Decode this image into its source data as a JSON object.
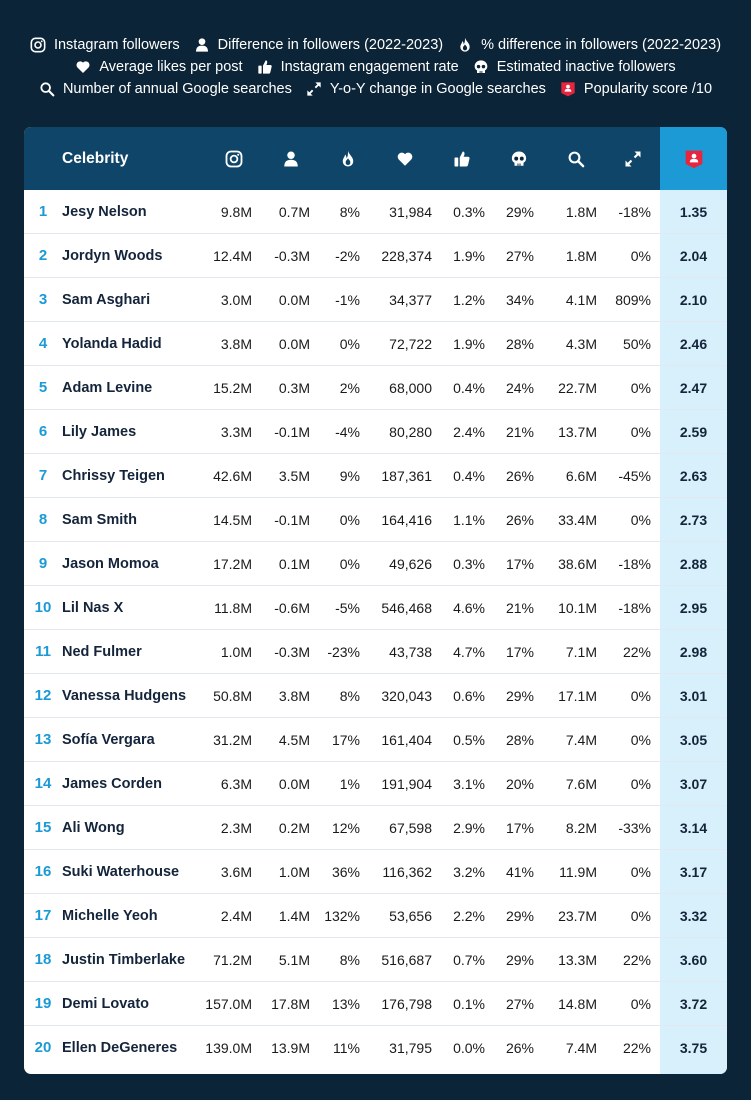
{
  "legend": [
    [
      {
        "icon": "instagram-icon",
        "label": "Instagram followers"
      },
      {
        "icon": "person-icon",
        "label": "Difference in followers (2022-2023)"
      },
      {
        "icon": "flame-icon",
        "label": "% difference in followers (2022-2023)"
      }
    ],
    [
      {
        "icon": "heart-icon",
        "label": "Average likes per post"
      },
      {
        "icon": "thumbs-up-icon",
        "label": "Instagram engagement rate"
      },
      {
        "icon": "skull-icon",
        "label": "Estimated inactive followers"
      }
    ],
    [
      {
        "icon": "search-icon",
        "label": "Number of annual Google searches"
      },
      {
        "icon": "expand-arrows-icon",
        "label": "Y-o-Y change in Google searches"
      },
      {
        "icon": "popularity-badge-icon",
        "label": "Popularity score /10"
      }
    ]
  ],
  "colors": {
    "background": "#0c2437",
    "header": "#0e4568",
    "accent": "#1b9ad5",
    "score_column": "#d7f0fb",
    "badge": "#e8253f"
  },
  "chart_data": {
    "type": "table",
    "header_title": "Celebrity",
    "column_icons": [
      "instagram-icon",
      "person-icon",
      "flame-icon",
      "heart-icon",
      "thumbs-up-icon",
      "skull-icon",
      "search-icon",
      "expand-arrows-icon",
      "popularity-badge-icon"
    ],
    "rows": [
      {
        "rank": "1",
        "name": "Jesy Nelson",
        "followers": "9.8M",
        "diff": "0.7M",
        "pct": "8%",
        "likes": "31,984",
        "engagement": "0.3%",
        "inactive": "29%",
        "searches": "1.8M",
        "yoy": "-18%",
        "score": "1.35"
      },
      {
        "rank": "2",
        "name": "Jordyn Woods",
        "followers": "12.4M",
        "diff": "-0.3M",
        "pct": "-2%",
        "likes": "228,374",
        "engagement": "1.9%",
        "inactive": "27%",
        "searches": "1.8M",
        "yoy": "0%",
        "score": "2.04"
      },
      {
        "rank": "3",
        "name": "Sam Asghari",
        "followers": "3.0M",
        "diff": "0.0M",
        "pct": "-1%",
        "likes": "34,377",
        "engagement": "1.2%",
        "inactive": "34%",
        "searches": "4.1M",
        "yoy": "809%",
        "score": "2.10"
      },
      {
        "rank": "4",
        "name": "Yolanda Hadid",
        "followers": "3.8M",
        "diff": "0.0M",
        "pct": "0%",
        "likes": "72,722",
        "engagement": "1.9%",
        "inactive": "28%",
        "searches": "4.3M",
        "yoy": "50%",
        "score": "2.46"
      },
      {
        "rank": "5",
        "name": "Adam Levine",
        "followers": "15.2M",
        "diff": "0.3M",
        "pct": "2%",
        "likes": "68,000",
        "engagement": "0.4%",
        "inactive": "24%",
        "searches": "22.7M",
        "yoy": "0%",
        "score": "2.47"
      },
      {
        "rank": "6",
        "name": "Lily James",
        "followers": "3.3M",
        "diff": "-0.1M",
        "pct": "-4%",
        "likes": "80,280",
        "engagement": "2.4%",
        "inactive": "21%",
        "searches": "13.7M",
        "yoy": "0%",
        "score": "2.59"
      },
      {
        "rank": "7",
        "name": "Chrissy Teigen",
        "followers": "42.6M",
        "diff": "3.5M",
        "pct": "9%",
        "likes": "187,361",
        "engagement": "0.4%",
        "inactive": "26%",
        "searches": "6.6M",
        "yoy": "-45%",
        "score": "2.63"
      },
      {
        "rank": "8",
        "name": "Sam Smith",
        "followers": "14.5M",
        "diff": "-0.1M",
        "pct": "0%",
        "likes": "164,416",
        "engagement": "1.1%",
        "inactive": "26%",
        "searches": "33.4M",
        "yoy": "0%",
        "score": "2.73"
      },
      {
        "rank": "9",
        "name": "Jason Momoa",
        "followers": "17.2M",
        "diff": "0.1M",
        "pct": "0%",
        "likes": "49,626",
        "engagement": "0.3%",
        "inactive": "17%",
        "searches": "38.6M",
        "yoy": "-18%",
        "score": "2.88"
      },
      {
        "rank": "10",
        "name": "Lil Nas X",
        "followers": "11.8M",
        "diff": "-0.6M",
        "pct": "-5%",
        "likes": "546,468",
        "engagement": "4.6%",
        "inactive": "21%",
        "searches": "10.1M",
        "yoy": "-18%",
        "score": "2.95"
      },
      {
        "rank": "11",
        "name": "Ned Fulmer",
        "followers": "1.0M",
        "diff": "-0.3M",
        "pct": "-23%",
        "likes": "43,738",
        "engagement": "4.7%",
        "inactive": "17%",
        "searches": "7.1M",
        "yoy": "22%",
        "score": "2.98"
      },
      {
        "rank": "12",
        "name": "Vanessa Hudgens",
        "followers": "50.8M",
        "diff": "3.8M",
        "pct": "8%",
        "likes": "320,043",
        "engagement": "0.6%",
        "inactive": "29%",
        "searches": "17.1M",
        "yoy": "0%",
        "score": "3.01"
      },
      {
        "rank": "13",
        "name": "Sofía Vergara",
        "followers": "31.2M",
        "diff": "4.5M",
        "pct": "17%",
        "likes": "161,404",
        "engagement": "0.5%",
        "inactive": "28%",
        "searches": "7.4M",
        "yoy": "0%",
        "score": "3.05"
      },
      {
        "rank": "14",
        "name": "James Corden",
        "followers": "6.3M",
        "diff": "0.0M",
        "pct": "1%",
        "likes": "191,904",
        "engagement": "3.1%",
        "inactive": "20%",
        "searches": "7.6M",
        "yoy": "0%",
        "score": "3.07"
      },
      {
        "rank": "15",
        "name": "Ali Wong",
        "followers": "2.3M",
        "diff": "0.2M",
        "pct": "12%",
        "likes": "67,598",
        "engagement": "2.9%",
        "inactive": "17%",
        "searches": "8.2M",
        "yoy": "-33%",
        "score": "3.14"
      },
      {
        "rank": "16",
        "name": "Suki Waterhouse",
        "followers": "3.6M",
        "diff": "1.0M",
        "pct": "36%",
        "likes": "116,362",
        "engagement": "3.2%",
        "inactive": "41%",
        "searches": "11.9M",
        "yoy": "0%",
        "score": "3.17"
      },
      {
        "rank": "17",
        "name": "Michelle Yeoh",
        "followers": "2.4M",
        "diff": "1.4M",
        "pct": "132%",
        "likes": "53,656",
        "engagement": "2.2%",
        "inactive": "29%",
        "searches": "23.7M",
        "yoy": "0%",
        "score": "3.32"
      },
      {
        "rank": "18",
        "name": "Justin Timberlake",
        "followers": "71.2M",
        "diff": "5.1M",
        "pct": "8%",
        "likes": "516,687",
        "engagement": "0.7%",
        "inactive": "29%",
        "searches": "13.3M",
        "yoy": "22%",
        "score": "3.60"
      },
      {
        "rank": "19",
        "name": "Demi Lovato",
        "followers": "157.0M",
        "diff": "17.8M",
        "pct": "13%",
        "likes": "176,798",
        "engagement": "0.1%",
        "inactive": "27%",
        "searches": "14.8M",
        "yoy": "0%",
        "score": "3.72"
      },
      {
        "rank": "20",
        "name": "Ellen DeGeneres",
        "followers": "139.0M",
        "diff": "13.9M",
        "pct": "11%",
        "likes": "31,795",
        "engagement": "0.0%",
        "inactive": "26%",
        "searches": "7.4M",
        "yoy": "22%",
        "score": "3.75"
      }
    ]
  }
}
